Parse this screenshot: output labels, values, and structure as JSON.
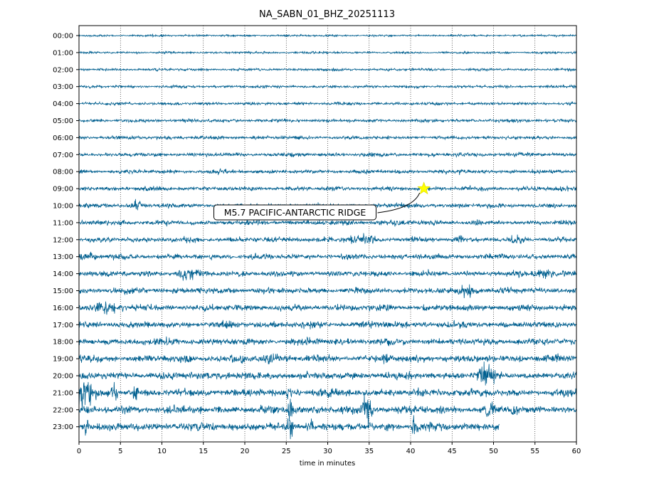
{
  "chart_data": {
    "type": "line",
    "title": "NA_SABN_01_BHZ_20251113",
    "xlabel": "time in minutes",
    "ylabel": "",
    "xlim": [
      0,
      60
    ],
    "x_ticks": [
      0,
      5,
      10,
      15,
      20,
      25,
      30,
      35,
      40,
      45,
      50,
      55,
      60
    ],
    "y_tick_labels": [
      "00:00",
      "01:00",
      "02:00",
      "03:00",
      "04:00",
      "05:00",
      "06:00",
      "07:00",
      "08:00",
      "09:00",
      "10:00",
      "11:00",
      "12:00",
      "13:00",
      "14:00",
      "15:00",
      "16:00",
      "17:00",
      "18:00",
      "19:00",
      "20:00",
      "21:00",
      "22:00",
      "23:00"
    ],
    "vertical_grid": true,
    "grid_style": "dotted",
    "trace_color": "#005f8f",
    "last_trace_end_minute": 50.7,
    "annotation": {
      "text": "M5.7 PACIFIC-ANTARCTIC RIDGE",
      "marker": "star",
      "marker_color": "#ffff00",
      "hour_row": "09:00",
      "minute": 41.6
    }
  }
}
